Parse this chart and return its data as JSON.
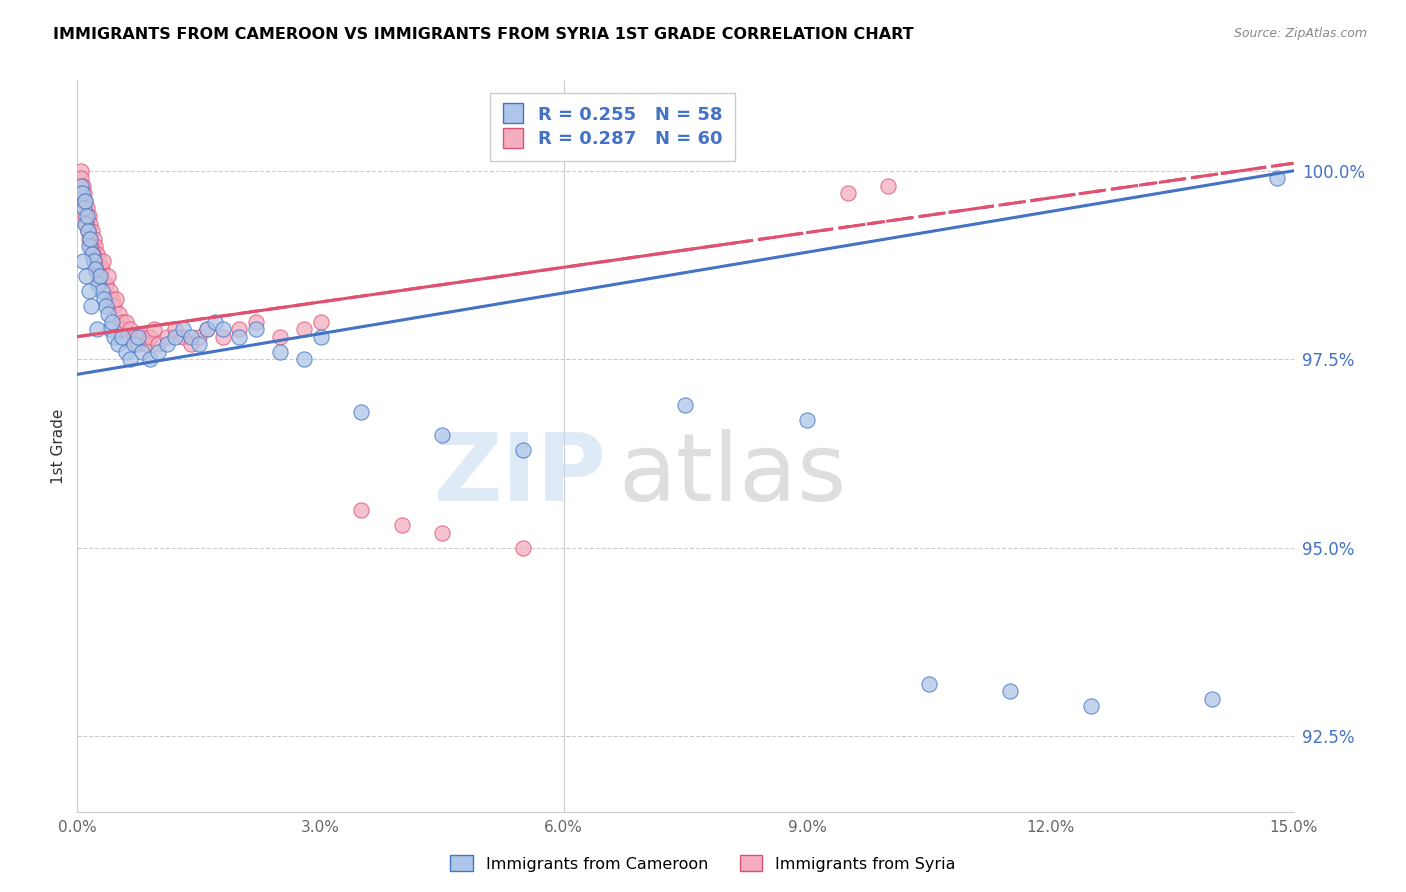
{
  "title": "IMMIGRANTS FROM CAMEROON VS IMMIGRANTS FROM SYRIA 1ST GRADE CORRELATION CHART",
  "source": "Source: ZipAtlas.com",
  "ylabel": "1st Grade",
  "ytick_labels": [
    "92.5%",
    "95.0%",
    "97.5%",
    "100.0%"
  ],
  "ytick_values": [
    92.5,
    95.0,
    97.5,
    100.0
  ],
  "xlim": [
    0.0,
    15.0
  ],
  "ylim": [
    91.5,
    101.2
  ],
  "cameroon_color": "#aec6e8",
  "syria_color": "#f4aec0",
  "line_cameroon_color": "#4472c4",
  "line_syria_color": "#e05070",
  "watermark_zip": "ZIP",
  "watermark_atlas": "atlas",
  "cameroon_x": [
    0.05,
    0.06,
    0.08,
    0.09,
    0.1,
    0.12,
    0.13,
    0.15,
    0.16,
    0.18,
    0.2,
    0.22,
    0.25,
    0.28,
    0.3,
    0.33,
    0.35,
    0.38,
    0.4,
    0.43,
    0.45,
    0.5,
    0.55,
    0.6,
    0.65,
    0.7,
    0.75,
    0.8,
    0.9,
    1.0,
    1.1,
    1.2,
    1.3,
    1.4,
    1.5,
    1.6,
    1.7,
    1.8,
    2.0,
    2.2,
    2.5,
    2.8,
    3.0,
    3.5,
    4.5,
    5.5,
    7.5,
    9.0,
    10.5,
    11.5,
    12.5,
    14.0,
    14.8,
    0.07,
    0.11,
    0.14,
    0.17,
    0.24
  ],
  "cameroon_y": [
    99.8,
    99.7,
    99.5,
    99.6,
    99.3,
    99.4,
    99.2,
    99.0,
    99.1,
    98.9,
    98.8,
    98.7,
    98.5,
    98.6,
    98.4,
    98.3,
    98.2,
    98.1,
    97.9,
    98.0,
    97.8,
    97.7,
    97.8,
    97.6,
    97.5,
    97.7,
    97.8,
    97.6,
    97.5,
    97.6,
    97.7,
    97.8,
    97.9,
    97.8,
    97.7,
    97.9,
    98.0,
    97.9,
    97.8,
    97.9,
    97.6,
    97.5,
    97.8,
    96.8,
    96.5,
    96.3,
    96.9,
    96.7,
    93.2,
    93.1,
    92.9,
    93.0,
    99.9,
    98.8,
    98.6,
    98.4,
    98.2,
    97.9
  ],
  "syria_x": [
    0.04,
    0.05,
    0.07,
    0.08,
    0.1,
    0.12,
    0.14,
    0.16,
    0.18,
    0.2,
    0.22,
    0.24,
    0.27,
    0.3,
    0.32,
    0.35,
    0.38,
    0.4,
    0.43,
    0.45,
    0.48,
    0.52,
    0.55,
    0.58,
    0.6,
    0.65,
    0.7,
    0.75,
    0.8,
    0.85,
    0.9,
    0.95,
    1.0,
    1.1,
    1.2,
    1.3,
    1.4,
    1.5,
    1.6,
    1.8,
    2.0,
    2.2,
    2.5,
    2.8,
    3.0,
    3.5,
    4.0,
    4.5,
    5.5,
    0.09,
    0.11,
    0.13,
    0.15,
    0.17,
    0.19,
    0.21,
    0.23,
    0.25,
    9.5,
    10.0
  ],
  "syria_y": [
    100.0,
    99.9,
    99.8,
    99.7,
    99.6,
    99.5,
    99.4,
    99.3,
    99.2,
    99.1,
    99.0,
    98.9,
    98.8,
    98.7,
    98.8,
    98.5,
    98.6,
    98.4,
    98.3,
    98.2,
    98.3,
    98.1,
    98.0,
    97.9,
    98.0,
    97.9,
    97.8,
    97.7,
    97.8,
    97.7,
    97.8,
    97.9,
    97.7,
    97.8,
    97.9,
    97.8,
    97.7,
    97.8,
    97.9,
    97.8,
    97.9,
    98.0,
    97.8,
    97.9,
    98.0,
    95.5,
    95.3,
    95.2,
    95.0,
    99.4,
    99.3,
    99.2,
    99.1,
    99.0,
    98.9,
    98.8,
    98.7,
    98.6,
    99.7,
    99.8
  ],
  "reg_cam_x0": 0.0,
  "reg_cam_y0": 97.3,
  "reg_cam_x1": 15.0,
  "reg_cam_y1": 100.0,
  "reg_syr_x0": 0.0,
  "reg_syr_y0": 97.8,
  "reg_syr_x1": 15.0,
  "reg_syr_y1": 100.1
}
